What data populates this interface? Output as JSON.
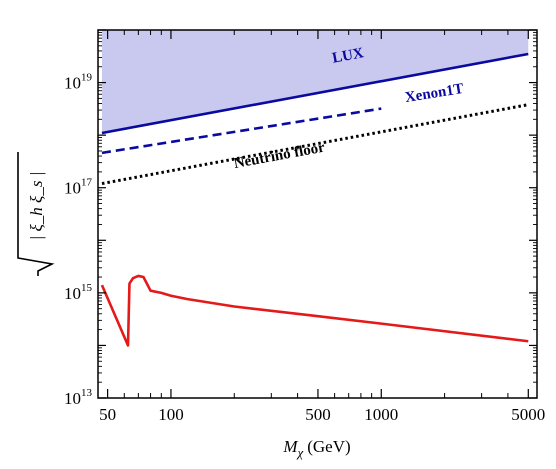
{
  "chart_data": {
    "type": "line",
    "title": "",
    "xlabel": {
      "symbol": "M",
      "subscript": "χ",
      "unit": "(GeV)"
    },
    "ylabel": {
      "radicand": "| ξ_h  ξ_s |"
    },
    "x_scale": "log",
    "y_scale": "log",
    "xlim": [
      45,
      5500
    ],
    "ylim": [
      10000000000000.0,
      1e+20
    ],
    "grid": false,
    "x_ticks": [
      {
        "value": 50,
        "label": "50"
      },
      {
        "value": 100,
        "label": "100"
      },
      {
        "value": 500,
        "label": "500"
      },
      {
        "value": 1000,
        "label": "1000"
      },
      {
        "value": 5000,
        "label": "5000"
      }
    ],
    "y_ticks": [
      {
        "value": 10000000000000.0,
        "base": "10",
        "exp": "13"
      },
      {
        "value": 1000000000000000.0,
        "base": "10",
        "exp": "15"
      },
      {
        "value": 1e+17,
        "base": "10",
        "exp": "17"
      },
      {
        "value": 1e+19,
        "base": "10",
        "exp": "19"
      }
    ],
    "excluded_region": {
      "bounded_by": "LUX",
      "color": "#c9c9ef"
    },
    "series": [
      {
        "name": "LUX",
        "color": "#0a0aa0",
        "style": "solid",
        "x": [
          47,
          5000
        ],
        "y": [
          1.1e+18,
          3.5e+19
        ]
      },
      {
        "name": "Xenon1T",
        "color": "#0a0aa0",
        "style": "dashed",
        "x": [
          47,
          1000
        ],
        "y": [
          4.6e+17,
          3.2e+18
        ]
      },
      {
        "name": "Neutrino floor",
        "color": "#000000",
        "style": "dotted",
        "x": [
          47,
          5000
        ],
        "y": [
          1.2e+17,
          3.8e+18
        ]
      },
      {
        "name": "",
        "color": "#e41a1a",
        "style": "solid",
        "x": [
          47,
          62.5,
          63.5,
          66,
          70,
          74,
          80,
          90,
          100,
          120,
          200,
          500,
          1000,
          5000
        ],
        "y": [
          1400000000000000.0,
          100000000000000.0,
          1500000000000000.0,
          1900000000000000.0,
          2100000000000000.0,
          2000000000000000.0,
          1100000000000000.0,
          1000000000000000.0,
          880000000000000.0,
          760000000000000.0,
          550000000000000.0,
          360000000000000.0,
          260000000000000.0,
          120000000000000.0
        ]
      }
    ],
    "annotations": [
      {
        "text": "LUX",
        "series": "LUX",
        "at_x": 700,
        "at_y": 2.7e+19,
        "color": "#0a0aa0"
      },
      {
        "text": "Xenon1T",
        "series": "Xenon1T",
        "at_x": 1800,
        "at_y": 5.2e+18,
        "color": "#0a0aa0"
      },
      {
        "text": "Neutrino floor",
        "series": "Neutrino floor",
        "at_x": 330,
        "at_y": 3.4e+17,
        "color": "#000000"
      }
    ]
  }
}
